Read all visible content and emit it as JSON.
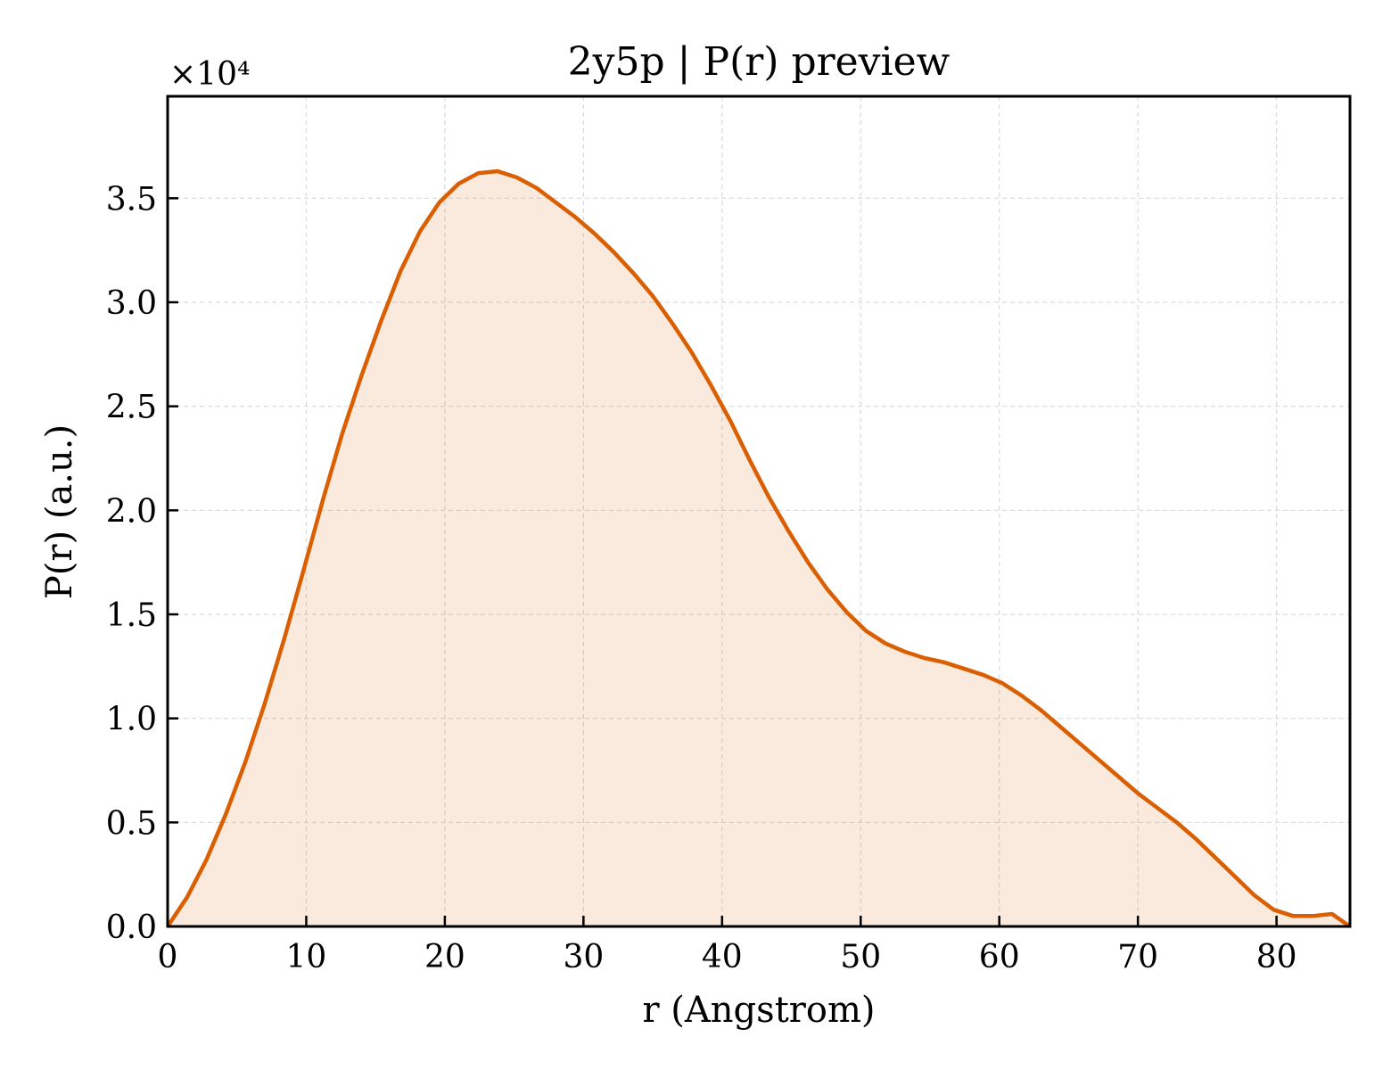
{
  "chart_data": {
    "type": "area",
    "title": "2y5p | P(r) preview",
    "xlabel": "r (Angstrom)",
    "ylabel": "P(r) (a.u.)",
    "y_multiplier_label": "×10⁴",
    "xlim": [
      0,
      85.3
    ],
    "ylim": [
      0,
      3.99
    ],
    "x_ticks": [
      0,
      10,
      20,
      30,
      40,
      50,
      60,
      70,
      80
    ],
    "x_tick_labels": [
      "0",
      "10",
      "20",
      "30",
      "40",
      "50",
      "60",
      "70",
      "80"
    ],
    "y_ticks": [
      0,
      0.5,
      1.0,
      1.5,
      2.0,
      2.5,
      3.0,
      3.5
    ],
    "y_tick_labels": [
      "0.0",
      "0.5",
      "1.0",
      "1.5",
      "2.0",
      "2.5",
      "3.0",
      "3.5"
    ],
    "grid": true,
    "colors": {
      "line": "#d95f02",
      "fill": "#d95f02",
      "fill_opacity": 0.13,
      "grid": "#d9d9d9",
      "axes": "#000000"
    },
    "series": [
      {
        "x": [
          0,
          1.4,
          2.8,
          4.2,
          5.6,
          7.0,
          8.4,
          9.8,
          11.2,
          12.6,
          14.0,
          15.4,
          16.8,
          18.2,
          19.6,
          21.0,
          22.4,
          23.8,
          25.2,
          26.6,
          28.0,
          29.4,
          30.8,
          32.2,
          33.6,
          35.0,
          36.4,
          37.8,
          39.2,
          40.6,
          42.0,
          43.4,
          44.8,
          46.2,
          47.6,
          49.0,
          50.4,
          51.8,
          53.2,
          54.6,
          56.0,
          57.4,
          58.8,
          60.2,
          61.6,
          63.0,
          64.4,
          65.8,
          67.2,
          68.6,
          70.0,
          71.4,
          72.8,
          74.2,
          75.6,
          77.0,
          78.4,
          79.8,
          81.2,
          82.6,
          84.0,
          85.3
        ],
        "y": [
          0,
          0.14,
          0.32,
          0.54,
          0.79,
          1.07,
          1.38,
          1.71,
          2.05,
          2.37,
          2.65,
          2.91,
          3.15,
          3.34,
          3.48,
          3.57,
          3.62,
          3.63,
          3.6,
          3.55,
          3.48,
          3.41,
          3.33,
          3.24,
          3.14,
          3.03,
          2.9,
          2.76,
          2.6,
          2.43,
          2.24,
          2.06,
          1.9,
          1.75,
          1.62,
          1.51,
          1.42,
          1.36,
          1.32,
          1.29,
          1.27,
          1.24,
          1.21,
          1.17,
          1.11,
          1.04,
          0.96,
          0.88,
          0.8,
          0.72,
          0.64,
          0.57,
          0.5,
          0.42,
          0.33,
          0.24,
          0.15,
          0.08,
          0.05,
          0.05,
          0.06,
          0.0
        ]
      }
    ]
  }
}
